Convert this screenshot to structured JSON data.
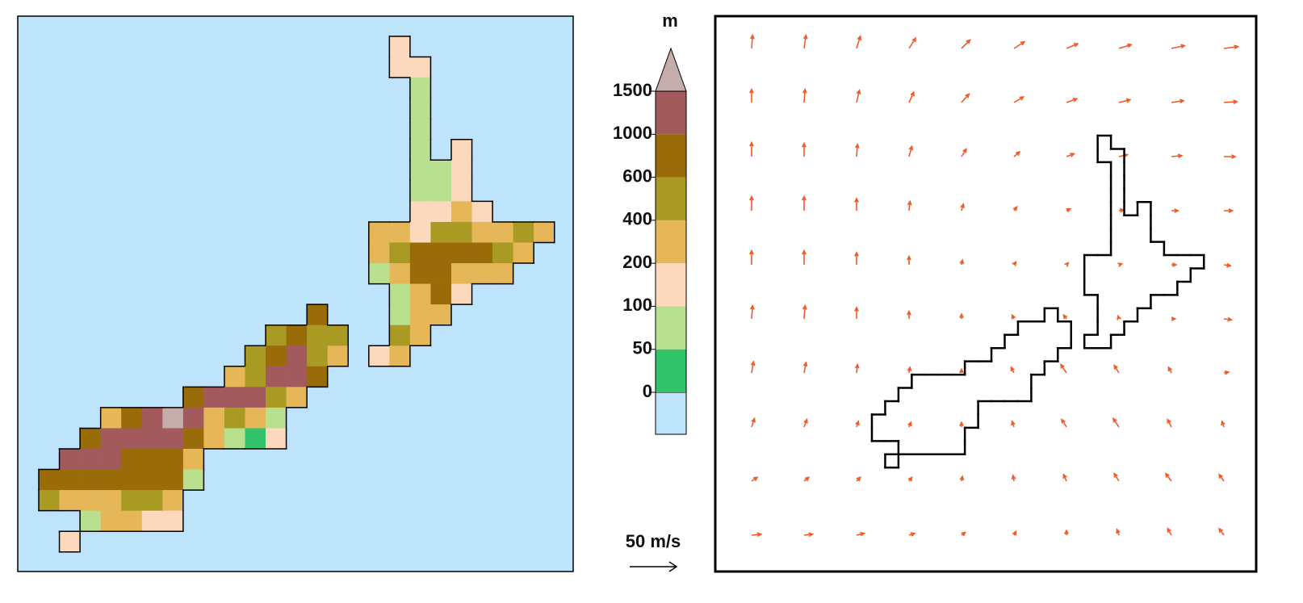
{
  "map": {
    "cells": [
      [
        null,
        null,
        null,
        null,
        null,
        null,
        null,
        null,
        null,
        null,
        null,
        null,
        null,
        null,
        null,
        null,
        null,
        150,
        null,
        null,
        null,
        null,
        null,
        null,
        null
      ],
      [
        null,
        null,
        null,
        null,
        null,
        null,
        null,
        null,
        null,
        null,
        null,
        null,
        null,
        null,
        null,
        null,
        null,
        150,
        150,
        null,
        null,
        null,
        null,
        null,
        null
      ],
      [
        null,
        null,
        null,
        null,
        null,
        null,
        null,
        null,
        null,
        null,
        null,
        null,
        null,
        null,
        null,
        null,
        null,
        null,
        75,
        null,
        null,
        null,
        null,
        null,
        null
      ],
      [
        null,
        null,
        null,
        null,
        null,
        null,
        null,
        null,
        null,
        null,
        null,
        null,
        null,
        null,
        null,
        null,
        null,
        null,
        75,
        null,
        null,
        null,
        null,
        null,
        null
      ],
      [
        null,
        null,
        null,
        null,
        null,
        null,
        null,
        null,
        null,
        null,
        null,
        null,
        null,
        null,
        null,
        null,
        null,
        null,
        75,
        null,
        null,
        null,
        null,
        null,
        null
      ],
      [
        null,
        null,
        null,
        null,
        null,
        null,
        null,
        null,
        null,
        null,
        null,
        null,
        null,
        null,
        null,
        null,
        null,
        null,
        75,
        null,
        150,
        null,
        null,
        null,
        null
      ],
      [
        null,
        null,
        null,
        null,
        null,
        null,
        null,
        null,
        null,
        null,
        null,
        null,
        null,
        null,
        null,
        null,
        null,
        null,
        75,
        75,
        150,
        null,
        null,
        null,
        null
      ],
      [
        null,
        null,
        null,
        null,
        null,
        null,
        null,
        null,
        null,
        null,
        null,
        null,
        null,
        null,
        null,
        null,
        null,
        null,
        75,
        75,
        150,
        null,
        null,
        null,
        null
      ],
      [
        null,
        null,
        null,
        null,
        null,
        null,
        null,
        null,
        null,
        null,
        null,
        null,
        null,
        null,
        null,
        null,
        null,
        null,
        150,
        150,
        300,
        150,
        null,
        null,
        null
      ],
      [
        null,
        null,
        null,
        null,
        null,
        null,
        null,
        null,
        null,
        null,
        null,
        null,
        null,
        null,
        null,
        null,
        300,
        300,
        150,
        500,
        500,
        300,
        300,
        500,
        300
      ],
      [
        null,
        null,
        null,
        null,
        null,
        null,
        null,
        null,
        null,
        null,
        null,
        null,
        null,
        null,
        null,
        null,
        300,
        500,
        800,
        800,
        800,
        800,
        500,
        300,
        null
      ],
      [
        null,
        null,
        null,
        null,
        null,
        null,
        null,
        null,
        null,
        null,
        null,
        null,
        null,
        null,
        null,
        null,
        75,
        300,
        800,
        800,
        300,
        300,
        300,
        null,
        null
      ],
      [
        null,
        null,
        null,
        null,
        null,
        null,
        null,
        null,
        null,
        null,
        null,
        null,
        null,
        null,
        null,
        null,
        null,
        75,
        300,
        800,
        150,
        null,
        null,
        null,
        null
      ],
      [
        null,
        null,
        null,
        null,
        null,
        null,
        null,
        null,
        null,
        null,
        null,
        null,
        null,
        800,
        null,
        null,
        null,
        75,
        300,
        300,
        null,
        null,
        null,
        null,
        null
      ],
      [
        null,
        null,
        null,
        null,
        null,
        null,
        null,
        null,
        null,
        null,
        null,
        500,
        800,
        500,
        500,
        null,
        null,
        500,
        300,
        null,
        null,
        null,
        null,
        null,
        null
      ],
      [
        null,
        null,
        null,
        null,
        null,
        null,
        null,
        null,
        null,
        null,
        500,
        800,
        1200,
        500,
        300,
        null,
        150,
        300,
        null,
        null,
        null,
        null,
        null,
        null,
        null
      ],
      [
        null,
        null,
        null,
        null,
        null,
        null,
        null,
        null,
        null,
        300,
        500,
        1200,
        1200,
        800,
        null,
        null,
        null,
        null,
        null,
        null,
        null,
        null,
        null,
        null,
        null
      ],
      [
        null,
        null,
        null,
        null,
        null,
        null,
        null,
        800,
        1200,
        1200,
        1200,
        500,
        300,
        null,
        null,
        null,
        null,
        null,
        null,
        null,
        null,
        null,
        null,
        null,
        null
      ],
      [
        null,
        null,
        null,
        300,
        800,
        1200,
        1600,
        1200,
        300,
        500,
        300,
        75,
        null,
        null,
        null,
        null,
        null,
        null,
        null,
        null,
        null,
        null,
        null,
        null,
        null
      ],
      [
        null,
        null,
        800,
        1200,
        1200,
        1200,
        1200,
        800,
        300,
        75,
        25,
        150,
        null,
        null,
        null,
        null,
        null,
        null,
        null,
        null,
        null,
        null,
        null,
        null,
        null
      ],
      [
        null,
        1200,
        1200,
        1200,
        800,
        800,
        800,
        300,
        null,
        null,
        null,
        null,
        null,
        null,
        null,
        null,
        null,
        null,
        null,
        null,
        null,
        null,
        null,
        null,
        null
      ],
      [
        800,
        800,
        800,
        800,
        800,
        800,
        800,
        75,
        null,
        null,
        null,
        null,
        null,
        null,
        null,
        null,
        null,
        null,
        null,
        null,
        null,
        null,
        null,
        null,
        null
      ],
      [
        500,
        300,
        300,
        300,
        500,
        500,
        300,
        null,
        null,
        null,
        null,
        null,
        null,
        null,
        null,
        null,
        null,
        null,
        null,
        null,
        null,
        null,
        null,
        null,
        null
      ],
      [
        null,
        null,
        75,
        300,
        300,
        150,
        150,
        null,
        null,
        null,
        null,
        null,
        null,
        null,
        null,
        null,
        null,
        null,
        null,
        null,
        null,
        null,
        null,
        null,
        null
      ],
      [
        null,
        150,
        null,
        null,
        null,
        null,
        null,
        null,
        null,
        null,
        null,
        null,
        null,
        null,
        null,
        null,
        null,
        null,
        null,
        null,
        null,
        null,
        null,
        null,
        null
      ]
    ]
  },
  "colorbar": {
    "unit": "m",
    "ticks": [
      0,
      50,
      100,
      200,
      400,
      600,
      1000,
      1500
    ],
    "colors": [
      "#bde4fa",
      "#33c36a",
      "#b9e08f",
      "#fcd9bc",
      "#e5b758",
      "#a89a22",
      "#9a6b09",
      "#a25a5d",
      "#c4adaa"
    ]
  },
  "wind": {
    "color": "#f05a28",
    "u": [
      [
        1,
        2,
        4,
        7,
        9,
        11,
        12,
        13,
        14,
        15
      ],
      [
        0,
        1,
        3,
        5,
        8,
        10,
        11,
        12,
        13,
        14
      ],
      [
        0,
        0,
        1,
        3,
        5,
        6,
        8,
        9,
        11,
        12
      ],
      [
        0,
        0,
        0,
        1,
        2,
        3,
        4,
        5,
        7,
        9
      ],
      [
        0,
        0,
        0,
        0,
        1,
        2,
        2,
        3,
        5,
        7
      ],
      [
        1,
        1,
        0,
        0,
        0,
        -2,
        -3,
        -1,
        4,
        8
      ],
      [
        2,
        2,
        1,
        1,
        0,
        -3,
        -6,
        -5,
        -3,
        5
      ],
      [
        3,
        3,
        2,
        2,
        0,
        -2,
        -5,
        -6,
        -4,
        -2
      ],
      [
        6,
        5,
        4,
        3,
        1,
        -1,
        -3,
        -5,
        -6,
        -5
      ],
      [
        10,
        9,
        8,
        6,
        4,
        2,
        0,
        -2,
        -4,
        -5
      ]
    ],
    "v": [
      [
        14,
        14,
        13,
        11,
        9,
        7,
        5,
        4,
        3,
        2
      ],
      [
        14,
        14,
        13,
        11,
        9,
        6,
        4,
        3,
        2,
        1
      ],
      [
        15,
        14,
        13,
        11,
        8,
        5,
        3,
        2,
        1,
        0
      ],
      [
        15,
        15,
        13,
        10,
        7,
        4,
        2,
        1,
        0,
        0
      ],
      [
        15,
        15,
        13,
        9,
        5,
        3,
        2,
        1,
        0,
        -1
      ],
      [
        14,
        14,
        12,
        8,
        5,
        4,
        4,
        3,
        0,
        -1
      ],
      [
        12,
        11,
        9,
        6,
        4,
        6,
        9,
        8,
        6,
        1
      ],
      [
        9,
        8,
        6,
        5,
        5,
        6,
        8,
        9,
        8,
        6
      ],
      [
        4,
        4,
        4,
        4,
        5,
        6,
        7,
        8,
        8,
        7
      ],
      [
        1,
        1,
        2,
        2,
        3,
        4,
        5,
        6,
        7,
        7
      ]
    ],
    "key": {
      "value": 50,
      "label": "50 m/s"
    }
  }
}
